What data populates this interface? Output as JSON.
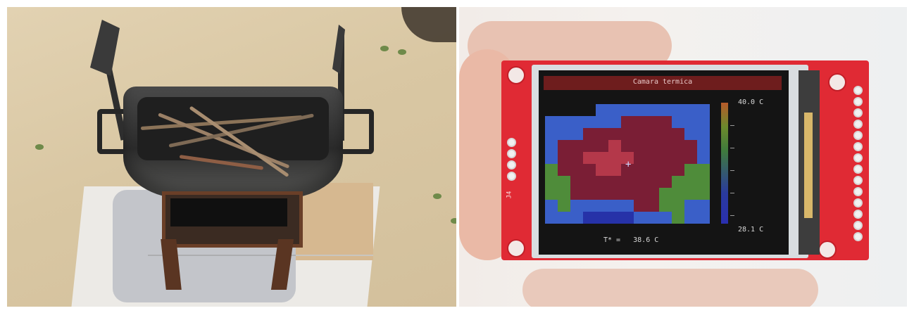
{
  "left_photo": {
    "subject": "grill"
  },
  "right_photo": {
    "screen": {
      "title": "Camara termica",
      "max_label": "40.0 C",
      "min_label": "28.1 C",
      "temp_readout": "T* =   38.6 C"
    },
    "pcb_label": "J4"
  },
  "colors": {
    "pcb_red": "#e02a34",
    "thermal_hot": "#7a1e35",
    "thermal_warm": "#b4384a",
    "thermal_mid": "#4f8c3a",
    "thermal_cool": "#3a5fc8",
    "thermal_cold": "#2632a8"
  }
}
